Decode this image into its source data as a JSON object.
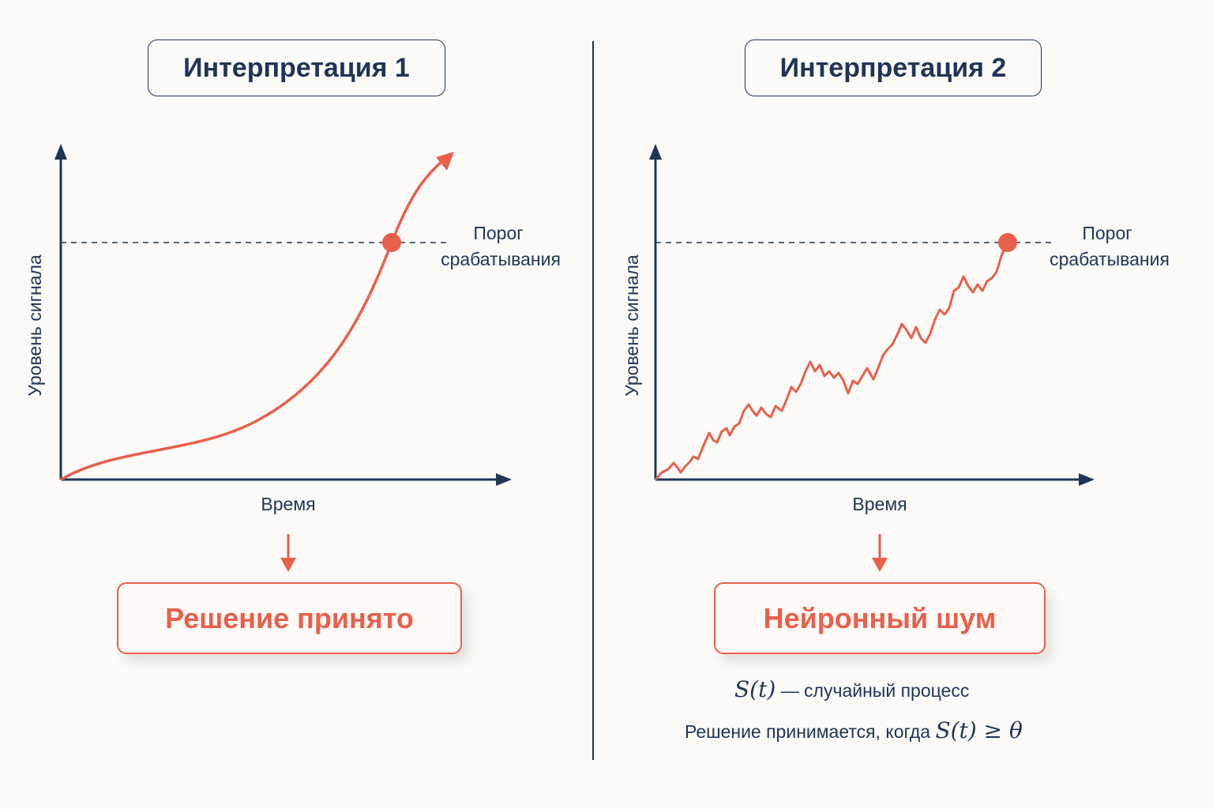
{
  "left_panel": {
    "title": "Интерпретация 1",
    "ylabel": "Уровень сигнала",
    "xlabel": "Время",
    "threshold_label_line1": "Порог",
    "threshold_label_line2": "срабатывания",
    "result": "Решение принято"
  },
  "right_panel": {
    "title": "Интерпретация 2",
    "ylabel": "Уровень сигнала",
    "xlabel": "Время",
    "threshold_label_line1": "Порог",
    "threshold_label_line2": "срабатывания",
    "result": "Нейронный шум",
    "note_math_1": "S(t)",
    "note_text_1": " — случайный процесс",
    "note_text_2": "Решение принимается, когда ",
    "note_math_2": "S(t) ≥ θ"
  },
  "colors": {
    "axis": "#1f3557",
    "signal": "#e8604c",
    "background": "#fbfaf7"
  },
  "icons": [
    "arrow-down-icon",
    "axis-arrow-icon",
    "threshold-marker-icon"
  ]
}
